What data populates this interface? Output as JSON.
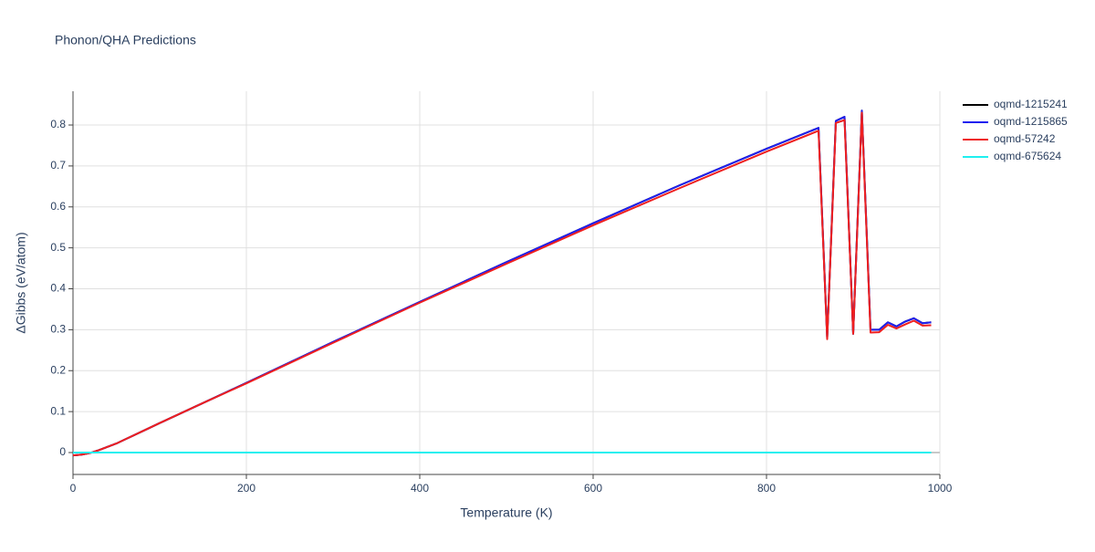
{
  "chart_data": {
    "type": "line",
    "title": "Phonon/QHA Predictions",
    "x_label": "Temperature (K)",
    "y_label": "ΔGibbs (eV/atom)",
    "x": [
      0,
      10,
      20,
      30,
      40,
      50,
      60,
      80,
      100,
      150,
      200,
      300,
      400,
      500,
      600,
      700,
      800,
      860,
      870,
      880,
      890,
      900,
      910,
      920,
      930,
      940,
      950,
      960,
      970,
      980,
      990
    ],
    "series": [
      {
        "name": "oqmd-1215241",
        "color": "#000000",
        "values": [
          -0.007,
          -0.005,
          -0.001,
          0.006,
          0.014,
          0.022,
          0.032,
          0.052,
          0.072,
          0.121,
          0.17,
          0.27,
          0.368,
          0.465,
          0.56,
          0.653,
          0.742,
          0.793,
          0.28,
          0.81,
          0.82,
          0.29,
          0.835,
          0.3,
          0.3,
          0.318,
          0.308,
          0.32,
          0.328,
          0.316,
          0.318
        ]
      },
      {
        "name": "oqmd-1215865",
        "color": "#1f1fef",
        "values": [
          -0.007,
          -0.005,
          -0.001,
          0.006,
          0.014,
          0.022,
          0.032,
          0.052,
          0.072,
          0.121,
          0.17,
          0.27,
          0.368,
          0.465,
          0.56,
          0.653,
          0.742,
          0.793,
          0.28,
          0.81,
          0.82,
          0.29,
          0.835,
          0.3,
          0.3,
          0.318,
          0.308,
          0.32,
          0.328,
          0.316,
          0.318
        ]
      },
      {
        "name": "oqmd-57242",
        "color": "#ef1f1f",
        "values": [
          -0.007,
          -0.005,
          -0.001,
          0.006,
          0.014,
          0.022,
          0.032,
          0.052,
          0.072,
          0.121,
          0.169,
          0.268,
          0.366,
          0.461,
          0.555,
          0.646,
          0.735,
          0.786,
          0.277,
          0.805,
          0.812,
          0.29,
          0.83,
          0.293,
          0.294,
          0.312,
          0.303,
          0.313,
          0.322,
          0.31,
          0.311
        ]
      },
      {
        "name": "oqmd-675624",
        "color": "#1fefef",
        "values": [
          0,
          0,
          0,
          0,
          0,
          0,
          0,
          0,
          0,
          0,
          0,
          0,
          0,
          0,
          0,
          0,
          0,
          0,
          0,
          0,
          0,
          0,
          0,
          0,
          0,
          0,
          0,
          0,
          0,
          0,
          0
        ]
      }
    ],
    "xlim": [
      0,
      1000
    ],
    "xticks": [
      0,
      200,
      400,
      600,
      800,
      1000
    ],
    "ylim": [
      -0.0535,
      0.8825
    ],
    "yticks": [
      0,
      0.1,
      0.2,
      0.3,
      0.4,
      0.5,
      0.6,
      0.7,
      0.8
    ],
    "grid": true,
    "legend": "outside-right"
  }
}
